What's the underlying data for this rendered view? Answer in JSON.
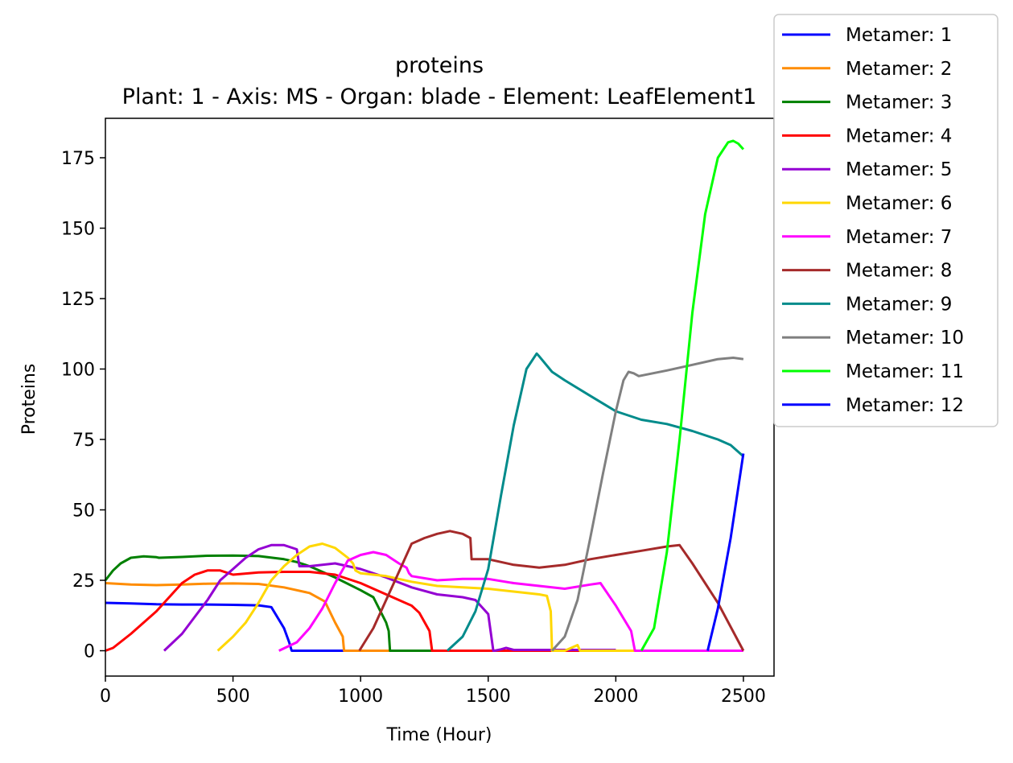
{
  "chart_data": {
    "type": "line",
    "title": "proteins",
    "subtitle": "Plant: 1 - Axis: MS - Organ: blade - Element: LeafElement1",
    "xlabel": "Time (Hour)",
    "ylabel": "Proteins",
    "xlim": [
      0,
      2620
    ],
    "ylim": [
      -9,
      189
    ],
    "xticks": [
      0,
      500,
      1000,
      1500,
      2000,
      2500
    ],
    "yticks": [
      0,
      25,
      50,
      75,
      100,
      125,
      150,
      175
    ],
    "grid": false,
    "legend_position": "upper right, outside plot area",
    "series": [
      {
        "name": "Metamer: 1",
        "color": "#0000ff",
        "x": [
          0,
          100,
          200,
          300,
          400,
          500,
          600,
          650,
          700,
          720,
          730,
          750,
          2500
        ],
        "y": [
          17,
          16.8,
          16.5,
          16.4,
          16.4,
          16.3,
          16.1,
          15.5,
          8,
          3,
          0,
          0,
          0
        ]
      },
      {
        "name": "Metamer: 2",
        "color": "#ff8c00",
        "x": [
          0,
          100,
          200,
          300,
          400,
          500,
          600,
          700,
          800,
          860,
          900,
          930,
          935,
          2500
        ],
        "y": [
          24,
          23.5,
          23.3,
          23.5,
          23.8,
          23.9,
          23.7,
          22.5,
          20.5,
          17.5,
          10,
          5,
          0,
          0
        ]
      },
      {
        "name": "Metamer: 3",
        "color": "#008000",
        "x": [
          0,
          30,
          60,
          100,
          150,
          200,
          210,
          300,
          400,
          500,
          600,
          700,
          750,
          800,
          900,
          1000,
          1050,
          1100,
          1110,
          1115,
          1200,
          2500
        ],
        "y": [
          25,
          28.5,
          31,
          33,
          33.5,
          33.2,
          33,
          33.3,
          33.7,
          33.8,
          33.6,
          32.5,
          31.5,
          30,
          26,
          21.5,
          19,
          10,
          7,
          0,
          0,
          0
        ]
      },
      {
        "name": "Metamer: 4",
        "color": "#ff0000",
        "x": [
          0,
          30,
          100,
          200,
          300,
          350,
          400,
          450,
          500,
          600,
          700,
          800,
          900,
          1000,
          1100,
          1200,
          1230,
          1270,
          1280,
          1350,
          2500
        ],
        "y": [
          0,
          1,
          6,
          14,
          24,
          27,
          28.5,
          28.5,
          27,
          27.8,
          28,
          28,
          27,
          24,
          20,
          16,
          13.5,
          7,
          0,
          0,
          0
        ]
      },
      {
        "name": "Metamer: 5",
        "color": "#9400d3",
        "x": [
          230,
          300,
          350,
          400,
          450,
          500,
          550,
          600,
          650,
          700,
          750,
          760,
          800,
          900,
          1000,
          1100,
          1200,
          1300,
          1400,
          1450,
          1500,
          1520,
          1525,
          1550,
          1570,
          1600,
          1700,
          2000
        ],
        "y": [
          0,
          6,
          12,
          18,
          25,
          29,
          33,
          36,
          37.5,
          37.5,
          36,
          30,
          30,
          31,
          29,
          26,
          22.5,
          20,
          19,
          18,
          13,
          0,
          0,
          0.5,
          1,
          0.3,
          0.3,
          0.3
        ]
      },
      {
        "name": "Metamer: 6",
        "color": "#ffd700",
        "x": [
          440,
          500,
          550,
          600,
          650,
          700,
          750,
          800,
          850,
          900,
          950,
          970,
          980,
          1000,
          1100,
          1200,
          1300,
          1400,
          1500,
          1600,
          1700,
          1730,
          1745,
          1750,
          1800,
          1850,
          1860,
          2000,
          2500
        ],
        "y": [
          0,
          5,
          10,
          17,
          25,
          30,
          34,
          37,
          38,
          36.5,
          33,
          31,
          28.5,
          27.5,
          26.5,
          24.5,
          23,
          22.5,
          22,
          21,
          20,
          19.5,
          14,
          0,
          0,
          2,
          0,
          0,
          0
        ]
      },
      {
        "name": "Metamer: 7",
        "color": "#ff00ff",
        "x": [
          680,
          750,
          800,
          850,
          900,
          950,
          1000,
          1050,
          1100,
          1150,
          1180,
          1190,
          1200,
          1300,
          1400,
          1500,
          1600,
          1700,
          1800,
          1900,
          1940,
          2000,
          2060,
          2075,
          2100,
          2500
        ],
        "y": [
          0,
          3,
          8,
          15,
          24,
          32,
          34,
          35,
          34,
          31,
          29.5,
          27.5,
          26.5,
          25,
          25.5,
          25.5,
          24,
          23,
          22,
          23.5,
          24,
          16,
          7,
          0,
          0,
          0
        ]
      },
      {
        "name": "Metamer: 8",
        "color": "#a52a2a",
        "x": [
          995,
          1050,
          1100,
          1150,
          1200,
          1250,
          1300,
          1350,
          1400,
          1430,
          1435,
          1500,
          1600,
          1700,
          1800,
          1900,
          2000,
          2100,
          2200,
          2250,
          2300,
          2400,
          2500
        ],
        "y": [
          0,
          8,
          18,
          28,
          38,
          40,
          41.5,
          42.5,
          41.5,
          40,
          32.5,
          32.5,
          30.5,
          29.5,
          30.5,
          32.5,
          34,
          35.5,
          37,
          37.5,
          31,
          17,
          0
        ]
      },
      {
        "name": "Metamer: 9",
        "color": "#008b8b",
        "x": [
          1340,
          1400,
          1450,
          1500,
          1550,
          1600,
          1650,
          1690,
          1700,
          1750,
          1800,
          1900,
          2000,
          2100,
          2200,
          2300,
          2400,
          2450,
          2500
        ],
        "y": [
          0,
          5,
          14,
          29,
          55,
          80,
          100,
          105.5,
          104.5,
          99,
          96,
          90.5,
          85,
          82,
          80.5,
          78,
          75,
          73,
          69
        ]
      },
      {
        "name": "Metamer: 10",
        "color": "#808080",
        "x": [
          1750,
          1800,
          1850,
          1900,
          1950,
          2000,
          2030,
          2050,
          2070,
          2090,
          2200,
          2300,
          2400,
          2460,
          2500
        ],
        "y": [
          0,
          5,
          18,
          40,
          63,
          85,
          96,
          99,
          98.5,
          97.5,
          99.5,
          101.5,
          103.5,
          104,
          103.5
        ]
      },
      {
        "name": "Metamer: 11",
        "color": "#00ff00",
        "x": [
          2100,
          2150,
          2200,
          2250,
          2300,
          2350,
          2400,
          2440,
          2460,
          2480,
          2500
        ],
        "y": [
          0,
          8,
          35,
          75,
          120,
          155,
          175,
          180.5,
          181,
          180,
          178
        ]
      },
      {
        "name": "Metamer: 12",
        "color": "#0000ff",
        "x": [
          2360,
          2400,
          2450,
          2500
        ],
        "y": [
          0,
          15,
          40,
          70
        ]
      }
    ]
  }
}
